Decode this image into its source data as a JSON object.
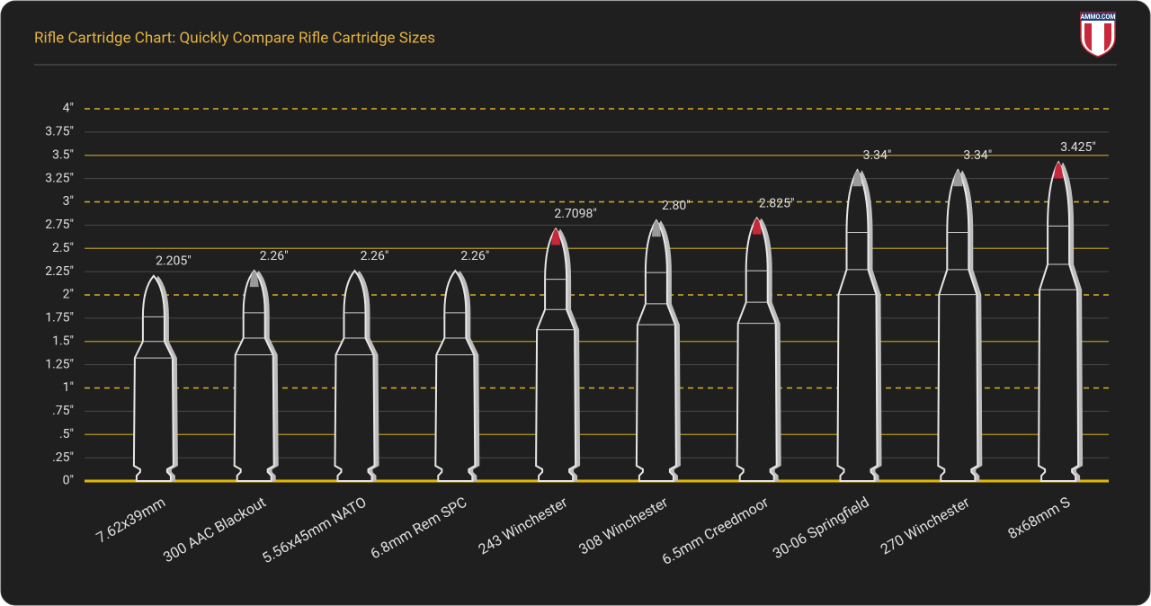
{
  "logo": "AMMO.COM",
  "chart_data": {
    "type": "cartridge",
    "title": "Rifle Cartridge Chart: Quickly Compare Rifle Cartridge Sizes",
    "categories": [
      "7.62x39mm",
      "300 AAC Blackout",
      "5.56x45mm NATO",
      "6.8mm Rem SPC",
      "243 Winchester",
      "308 Winchester",
      "6.5mm Creedmoor",
      "30-06 Springfield",
      "270 Winchester",
      "8x68mm S"
    ],
    "values": [
      2.205,
      2.26,
      2.26,
      2.26,
      2.7098,
      2.8,
      2.825,
      3.34,
      3.34,
      3.425
    ],
    "value_labels": [
      "2.205\"",
      "2.26\"",
      "2.26\"",
      "2.26\"",
      "2.7098\"",
      "2.80\"",
      "2.825\"",
      "3.34\"",
      "3.34\"",
      "3.425\""
    ],
    "tip_colors": [
      null,
      "#9a9a9a",
      null,
      null,
      "#c8283a",
      "#9a9a9a",
      "#c8283a",
      "#9a9a9a",
      "#9a9a9a",
      "#c8283a"
    ],
    "color": "#e6e6e6",
    "ylim": [
      0,
      4
    ],
    "yticks": [
      {
        "value": 0,
        "label": "0\""
      },
      {
        "value": 0.25,
        "label": ".25\""
      },
      {
        "value": 0.5,
        "label": ".5\""
      },
      {
        "value": 0.75,
        "label": ".75\""
      },
      {
        "value": 1,
        "label": "1\""
      },
      {
        "value": 1.25,
        "label": "1.25\""
      },
      {
        "value": 1.5,
        "label": "1.5\""
      },
      {
        "value": 1.75,
        "label": "1.75\""
      },
      {
        "value": 2,
        "label": "2\""
      },
      {
        "value": 2.25,
        "label": "2.25\""
      },
      {
        "value": 2.5,
        "label": "2.5\""
      },
      {
        "value": 2.75,
        "label": "2.75\""
      },
      {
        "value": 3,
        "label": "3\""
      },
      {
        "value": 3.25,
        "label": "3.25\""
      },
      {
        "value": 3.5,
        "label": "3.5\""
      },
      {
        "value": 3.75,
        "label": "3.75\""
      },
      {
        "value": 4,
        "label": "4\""
      }
    ],
    "grid": true
  }
}
